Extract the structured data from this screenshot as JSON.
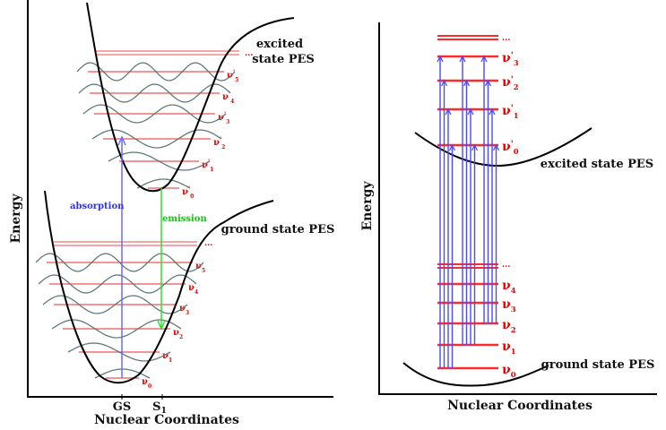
{
  "left_panel": {
    "y_axis_label": "Energy",
    "x_axis_label": "Nuclear Coordinates",
    "x_ticks": [
      {
        "label": "GS",
        "sub": ""
      },
      {
        "label": "S",
        "sub": "1"
      }
    ],
    "excited_label_line1": "excited",
    "excited_label_line2": "state PES",
    "ground_label": "ground state PES",
    "absorption_label": "absorption",
    "emission_label": "emission",
    "excited_levels": [
      {
        "v": "0",
        "prime": true
      },
      {
        "v": "1",
        "prime": true
      },
      {
        "v": "2",
        "prime": true
      },
      {
        "v": "3",
        "prime": true
      },
      {
        "v": "4",
        "prime": true
      },
      {
        "v": "5",
        "prime": true
      }
    ],
    "ground_levels": [
      {
        "v": "0",
        "prime": false
      },
      {
        "v": "1",
        "prime": false
      },
      {
        "v": "2",
        "prime": false
      },
      {
        "v": "3",
        "prime": false
      },
      {
        "v": "4",
        "prime": false
      },
      {
        "v": "5",
        "prime": false
      }
    ],
    "ellipsis": "..."
  },
  "right_panel": {
    "y_axis_label": "Energy",
    "x_axis_label": "Nuclear Coordinates",
    "excited_label": "excited state PES",
    "ground_label": "ground state PES",
    "excited_levels": [
      "0",
      "1",
      "2",
      "3"
    ],
    "ground_levels": [
      "0",
      "1",
      "2",
      "3",
      "4"
    ],
    "transitions_from": [
      "0",
      "1",
      "2"
    ],
    "transitions_to": [
      "0",
      "1",
      "2",
      "3"
    ],
    "ellipsis": "..."
  },
  "colors": {
    "level": "#ff2a2a",
    "level_light": "#f07070",
    "absorption": "#4a4aff",
    "emission": "#33dd33",
    "wavefunction": "#5f7a78",
    "curve": "#000000"
  }
}
